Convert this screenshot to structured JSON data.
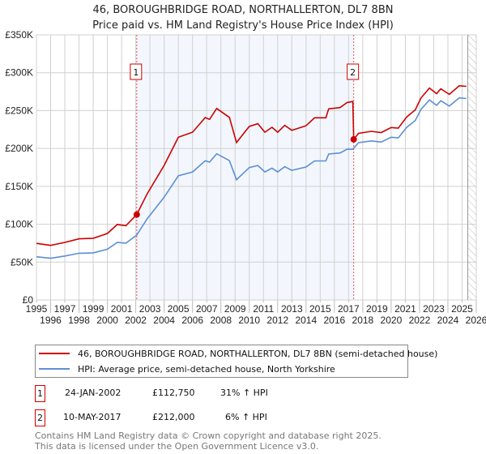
{
  "chart_data": {
    "type": "line",
    "title": "46, BOROUGHBRIDGE ROAD, NORTHALLERTON, DL7 8BN",
    "subtitle": "Price paid vs. HM Land Registry's House Price Index (HPI)",
    "xlim": [
      1995,
      2026
    ],
    "ylim": [
      0,
      350000
    ],
    "x_ticks": [
      "1995",
      "1996",
      "1997",
      "1998",
      "1999",
      "2000",
      "2001",
      "2002",
      "2003",
      "2004",
      "2005",
      "2006",
      "2007",
      "2008",
      "2009",
      "2010",
      "2011",
      "2012",
      "2013",
      "2014",
      "2015",
      "2016",
      "2017",
      "2018",
      "2019",
      "2020",
      "2021",
      "2022",
      "2023",
      "2024",
      "2025",
      "2026"
    ],
    "y_ticks": [
      {
        "v": 0,
        "label": "£0"
      },
      {
        "v": 50000,
        "label": "£50K"
      },
      {
        "v": 100000,
        "label": "£100K"
      },
      {
        "v": 150000,
        "label": "£150K"
      },
      {
        "v": 200000,
        "label": "£200K"
      },
      {
        "v": 250000,
        "label": "£250K"
      },
      {
        "v": 300000,
        "label": "£300K"
      },
      {
        "v": 350000,
        "label": "£350K"
      }
    ],
    "grid": true,
    "projection_start": 2025.4,
    "series": [
      {
        "name": "46, BOROUGHBRIDGE ROAD, NORTHALLERTON, DL7 8BN (semi-detached house)",
        "color": "#cc0000",
        "x": [
          1995,
          1996,
          1997,
          1998,
          1999,
          2000,
          2000.7,
          2001.3,
          2002.07,
          2002.8,
          2004,
          2005,
          2006,
          2006.9,
          2007.2,
          2007.7,
          2008.6,
          2009.1,
          2010,
          2010.6,
          2011.1,
          2011.6,
          2012,
          2012.5,
          2013,
          2014,
          2014.6,
          2015.4,
          2015.6,
          2016.4,
          2016.9,
          2017.3,
          2017.36,
          2017.7,
          2018.6,
          2019.3,
          2020,
          2020.5,
          2021.1,
          2021.7,
          2022.1,
          2022.7,
          2023.2,
          2023.5,
          2024.1,
          2024.8,
          2025.3
        ],
        "y": [
          74700,
          72000,
          76000,
          80700,
          81500,
          87800,
          99600,
          98000,
          112750,
          140000,
          177600,
          214800,
          221400,
          240800,
          238400,
          252800,
          241000,
          207900,
          229000,
          232700,
          221400,
          228000,
          221400,
          230600,
          224000,
          230000,
          240500,
          240500,
          252400,
          254000,
          260700,
          262000,
          212000,
          220000,
          222600,
          221000,
          227700,
          226800,
          241700,
          251000,
          266600,
          279800,
          272400,
          278800,
          271400,
          282800,
          282000
        ]
      },
      {
        "name": "HPI: Average price, semi-detached house, North Yorkshire",
        "color": "#5b8fd4",
        "x": [
          1995,
          1996,
          1997,
          1998,
          1999,
          2000,
          2000.7,
          2001.3,
          2002.07,
          2002.8,
          2004,
          2005,
          2006,
          2006.9,
          2007.2,
          2007.7,
          2008.6,
          2009.1,
          2010,
          2010.6,
          2011.1,
          2011.6,
          2012,
          2012.5,
          2013,
          2014,
          2014.6,
          2015.4,
          2015.6,
          2016.4,
          2016.9,
          2017.3,
          2017.7,
          2018.6,
          2019.3,
          2020,
          2020.5,
          2021.1,
          2021.7,
          2022.1,
          2022.7,
          2023.2,
          2023.5,
          2024.1,
          2024.8,
          2025.3
        ],
        "y": [
          57000,
          55000,
          58000,
          61600,
          62200,
          67000,
          76000,
          75000,
          85600,
          107000,
          135600,
          164000,
          169000,
          183800,
          182000,
          193000,
          184000,
          158700,
          174800,
          177600,
          169000,
          174000,
          169000,
          176000,
          171000,
          175500,
          183600,
          183600,
          192700,
          194000,
          199000,
          199000,
          207600,
          210000,
          208500,
          214800,
          214000,
          228000,
          237000,
          251500,
          264000,
          257000,
          263000,
          256000,
          266800,
          266000
        ]
      }
    ],
    "sales": [
      {
        "id": "1",
        "x": 2002.07,
        "price": 112750,
        "date": "24-JAN-2002",
        "price_label": "£112,750",
        "hpi": "31% ↑ HPI"
      },
      {
        "id": "2",
        "x": 2017.36,
        "price": 212000,
        "date": "10-MAY-2017",
        "price_label": "£212,000",
        "hpi": "6% ↑ HPI"
      }
    ]
  },
  "footer": {
    "line1": "Contains HM Land Registry data © Crown copyright and database right 2025.",
    "line2": "This data is licensed under the Open Government Licence v3.0."
  }
}
